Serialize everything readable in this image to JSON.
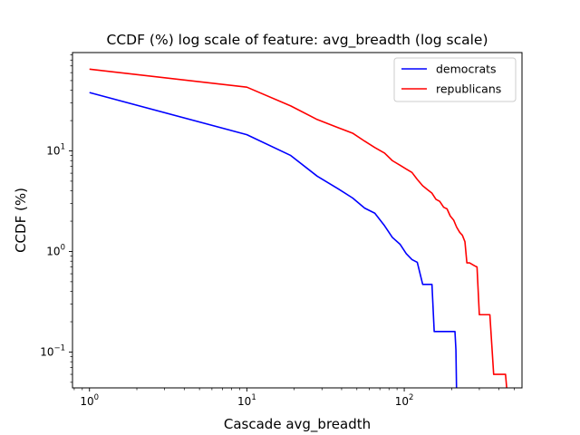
{
  "chart_data": {
    "type": "line",
    "title": "CCDF (%) log scale of feature: avg_breadth (log scale)",
    "xlabel": "Cascade avg_breadth",
    "ylabel": "CCDF (%)",
    "xscale": "log",
    "yscale": "log",
    "xlim": [
      0.78,
      560
    ],
    "ylim": [
      0.044,
      95
    ],
    "grid": false,
    "legend_position": "top-right",
    "x_ticks": [
      {
        "value": 1,
        "base": "10",
        "exp": "0"
      },
      {
        "value": 10,
        "base": "10",
        "exp": "1"
      },
      {
        "value": 100,
        "base": "10",
        "exp": "2"
      }
    ],
    "y_ticks": [
      {
        "value": 0.1,
        "base": "10",
        "exp": "−1"
      },
      {
        "value": 1,
        "base": "10",
        "exp": "0"
      },
      {
        "value": 10,
        "base": "10",
        "exp": "1"
      }
    ],
    "series": [
      {
        "name": "democrats",
        "color": "#0000ff",
        "x": [
          1,
          10,
          19,
          28,
          38,
          47,
          56,
          65,
          75,
          84,
          94,
          103,
          112,
          121,
          131,
          150,
          155,
          210,
          213,
          215
        ],
        "y": [
          38,
          14.5,
          9,
          5.6,
          4.2,
          3.4,
          2.7,
          2.4,
          1.8,
          1.38,
          1.18,
          0.95,
          0.83,
          0.78,
          0.47,
          0.47,
          0.16,
          0.16,
          0.105,
          0.04
        ]
      },
      {
        "name": "republicans",
        "color": "#ff0000",
        "x": [
          1,
          10,
          19,
          28,
          38,
          47,
          56,
          65,
          75,
          84,
          94,
          103,
          112,
          121,
          131,
          141,
          150,
          159,
          168,
          178,
          187,
          196,
          206,
          215,
          225,
          234,
          243,
          250,
          260,
          280,
          290,
          300,
          350,
          370,
          440,
          450
        ],
        "y": [
          65,
          43,
          28,
          20.5,
          17,
          15,
          12.5,
          10.8,
          9.5,
          8.0,
          7.2,
          6.6,
          6.1,
          5.2,
          4.5,
          4.1,
          3.8,
          3.3,
          3.15,
          2.75,
          2.65,
          2.25,
          2.05,
          1.75,
          1.55,
          1.45,
          1.25,
          0.77,
          0.77,
          0.72,
          0.7,
          0.235,
          0.235,
          0.06,
          0.06,
          0.04
        ]
      }
    ]
  }
}
